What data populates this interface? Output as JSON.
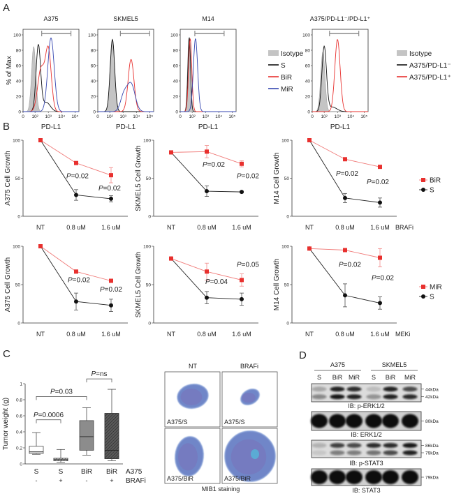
{
  "panel_labels": [
    "A",
    "B",
    "C",
    "D"
  ],
  "colors": {
    "S": "#111111",
    "BiR": "#e8302e",
    "MiR": "#3546b0",
    "isotype": "#c4c4c4",
    "gate": "#8a8a8a"
  },
  "panel_a": {
    "legend_1": [
      {
        "label": "Isotype",
        "color": "#c4c4c4",
        "style": "filled"
      },
      {
        "label": "S",
        "color": "#111111",
        "style": "line"
      },
      {
        "label": "BiR",
        "color": "#e8302e",
        "style": "line"
      },
      {
        "label": "MiR",
        "color": "#3546b0",
        "style": "line"
      }
    ],
    "legend_2": [
      {
        "label": "Isotype",
        "color": "#c4c4c4",
        "style": "filled"
      },
      {
        "label": "A375/PD-L1⁻",
        "color": "#111111",
        "style": "line"
      },
      {
        "label": "A375/PD-L1⁺",
        "color": "#e8302e",
        "style": "line"
      }
    ]
  },
  "chart_data": [
    {
      "type": "histogram",
      "title": "A375",
      "xlabel": "PD-L1",
      "ylabel": "% of Max",
      "yticks": [
        "0",
        "20",
        "40",
        "60",
        "80",
        "100"
      ],
      "xticks": [
        "0",
        "10²",
        "10³",
        "10⁴",
        "10⁵"
      ],
      "gate_log10": [
        2.5,
        4.7
      ],
      "series": [
        {
          "name": "Isotype",
          "color": "#c4c4c4",
          "filled": true,
          "components": [
            [
              1.9,
              85,
              0.16
            ]
          ]
        },
        {
          "name": "S",
          "color": "#111111",
          "components": [
            [
              2.25,
              86,
              0.17
            ],
            [
              2.85,
              12,
              0.3
            ]
          ]
        },
        {
          "name": "BiR",
          "color": "#e8302e",
          "components": [
            [
              3.0,
              80,
              0.22
            ],
            [
              2.45,
              55,
              0.25
            ]
          ]
        },
        {
          "name": "MiR",
          "color": "#3546b0",
          "components": [
            [
              3.2,
              96,
              0.24
            ]
          ]
        }
      ]
    },
    {
      "type": "histogram",
      "title": "SKMEL5",
      "xlabel": "PD-L1",
      "ylabel": "",
      "yticks": [
        "0",
        "20",
        "40",
        "60",
        "80",
        "100"
      ],
      "xticks": [
        "0",
        "10²",
        "10³",
        "10⁴",
        "10⁵"
      ],
      "gate_log10": [
        2.8,
        5.0
      ],
      "series": [
        {
          "name": "Isotype",
          "color": "#c4c4c4",
          "filled": true,
          "components": [
            [
              2.2,
              95,
              0.17
            ]
          ]
        },
        {
          "name": "S",
          "color": "#111111",
          "components": [
            [
              2.2,
              94,
              0.17
            ]
          ]
        },
        {
          "name": "BiR",
          "color": "#e8302e",
          "components": [
            [
              3.6,
              68,
              0.22
            ]
          ]
        },
        {
          "name": "MiR",
          "color": "#3546b0",
          "components": [
            [
              3.6,
              36,
              0.3
            ],
            [
              3.05,
              20,
              0.25
            ]
          ]
        }
      ]
    },
    {
      "type": "histogram",
      "title": "M14",
      "xlabel": "PD-L1",
      "ylabel": "",
      "yticks": [
        "0",
        "20",
        "40",
        "60",
        "80",
        "100"
      ],
      "xticks": [
        "0",
        "10²",
        "10³",
        "10⁴",
        "10⁵"
      ],
      "gate_log10": [
        2.2,
        4.4
      ],
      "series": [
        {
          "name": "Isotype",
          "color": "#c4c4c4",
          "filled": true,
          "components": [
            [
              1.75,
              95,
              0.1
            ]
          ]
        },
        {
          "name": "S",
          "color": "#111111",
          "components": [
            [
              1.78,
              97,
              0.1
            ]
          ]
        },
        {
          "name": "BiR",
          "color": "#e8302e",
          "components": [
            [
              1.85,
              95,
              0.12
            ]
          ]
        },
        {
          "name": "MiR",
          "color": "#3546b0",
          "components": [
            [
              2.25,
              95,
              0.16
            ]
          ]
        }
      ]
    },
    {
      "type": "histogram",
      "title": "A375/PD-L1⁻/PD-L1⁺",
      "xlabel": "PD-L1",
      "ylabel": "",
      "yticks": [
        "0",
        "20",
        "40",
        "60",
        "80",
        "100"
      ],
      "xticks": [
        "0",
        "10²",
        "10³",
        "10⁴",
        "10⁵"
      ],
      "gate_log10": [
        2.4,
        4.6
      ],
      "series": [
        {
          "name": "Isotype",
          "color": "#c4c4c4",
          "filled": true,
          "components": [
            [
              1.9,
              78,
              0.16
            ]
          ]
        },
        {
          "name": "A375/PD-L1⁻",
          "color": "#111111",
          "components": [
            [
              2.0,
              84,
              0.17
            ],
            [
              2.6,
              6,
              0.35
            ]
          ]
        },
        {
          "name": "A375/PD-L1⁺",
          "color": "#e8302e",
          "components": [
            [
              3.0,
              94,
              0.2
            ]
          ]
        }
      ]
    },
    {
      "type": "line",
      "ylabel": "A375 Cell Growth",
      "categories": [
        "NT",
        "0.8 uM",
        "1.6 uM"
      ],
      "ylim": [
        0,
        100
      ],
      "yticks": [
        "0",
        "50",
        "100"
      ],
      "x_suffix": "",
      "series": [
        {
          "name": "BiR",
          "color": "#e8302e",
          "marker": "square",
          "values": [
            100,
            70,
            54
          ],
          "errors": [
            0,
            1,
            10
          ]
        },
        {
          "name": "S",
          "color": "#111111",
          "marker": "circle",
          "values": [
            100,
            28,
            23
          ],
          "errors": [
            0,
            7,
            4
          ]
        }
      ],
      "annotations": [
        {
          "symbol": "P",
          "text": "=0.02"
        },
        {
          "symbol": "P",
          "text": "=0.02"
        }
      ]
    },
    {
      "type": "line",
      "ylabel": "SKMEL5 Cell Growth",
      "categories": [
        "NT",
        "0.8 uM",
        "1.6 uM"
      ],
      "ylim": [
        0,
        100
      ],
      "yticks": [
        "0",
        "50",
        "100"
      ],
      "x_suffix": "",
      "series": [
        {
          "name": "BiR",
          "color": "#e8302e",
          "marker": "square",
          "values": [
            84,
            85,
            69
          ],
          "errors": [
            0,
            8,
            4
          ]
        },
        {
          "name": "S",
          "color": "#111111",
          "marker": "circle",
          "values": [
            84,
            33,
            32
          ],
          "errors": [
            1,
            7,
            1
          ]
        }
      ],
      "annotations": [
        {
          "symbol": "P",
          "text": "=0.02"
        },
        {
          "symbol": "P",
          "text": "=0.02"
        }
      ]
    },
    {
      "type": "line",
      "ylabel": "M14 Cell Growth",
      "categories": [
        "NT",
        "0.8 uM",
        "1.6 uM"
      ],
      "ylim": [
        0,
        100
      ],
      "yticks": [
        "0",
        "50",
        "100"
      ],
      "x_suffix": "BRAFi",
      "series": [
        {
          "name": "BiR",
          "color": "#e8302e",
          "marker": "square",
          "values": [
            100,
            75,
            65
          ],
          "errors": [
            0,
            1,
            1
          ]
        },
        {
          "name": "S",
          "color": "#111111",
          "marker": "circle",
          "values": [
            100,
            24,
            18
          ],
          "errors": [
            0,
            6,
            6
          ]
        }
      ],
      "annotations": [
        {
          "symbol": "P",
          "text": "=0.02"
        },
        {
          "symbol": "P",
          "text": "=0.02"
        }
      ]
    },
    {
      "type": "line",
      "ylabel": "A375 Cell Growth",
      "categories": [
        "NT",
        "0.8 uM",
        "1.6 uM"
      ],
      "ylim": [
        0,
        100
      ],
      "yticks": [
        "0",
        "50",
        "100"
      ],
      "x_suffix": "",
      "series": [
        {
          "name": "MiR",
          "color": "#e8302e",
          "marker": "square",
          "values": [
            100,
            67,
            55
          ],
          "errors": [
            0,
            1,
            2
          ]
        },
        {
          "name": "S",
          "color": "#111111",
          "marker": "circle",
          "values": [
            100,
            28,
            23
          ],
          "errors": [
            0,
            11,
            8
          ]
        }
      ],
      "annotations": [
        {
          "symbol": "P",
          "text": "=0.02"
        },
        {
          "symbol": "P",
          "text": "=0.02"
        }
      ]
    },
    {
      "type": "line",
      "ylabel": "SKMEL5 Cell Growth",
      "categories": [
        "NT",
        "0.8 uM",
        "1.6 uM"
      ],
      "ylim": [
        0,
        100
      ],
      "yticks": [
        "0",
        "50",
        "100"
      ],
      "x_suffix": "",
      "series": [
        {
          "name": "MiR",
          "color": "#e8302e",
          "marker": "square",
          "values": [
            84,
            67,
            56
          ],
          "errors": [
            1,
            11,
            8
          ]
        },
        {
          "name": "S",
          "color": "#111111",
          "marker": "circle",
          "values": [
            84,
            33,
            31
          ],
          "errors": [
            1,
            8,
            8
          ]
        }
      ],
      "annotations": [
        {
          "symbol": "P",
          "text": "=0.04"
        },
        {
          "symbol": "P",
          "text": "=0.05"
        }
      ]
    },
    {
      "type": "line",
      "ylabel": "M14 Cell Growth",
      "categories": [
        "NT",
        "0.8 uM",
        "1.6 uM"
      ],
      "ylim": [
        0,
        100
      ],
      "yticks": [
        "0",
        "50",
        "100"
      ],
      "x_suffix": "MEKi",
      "series": [
        {
          "name": "MiR",
          "color": "#e8302e",
          "marker": "square",
          "values": [
            97,
            95,
            85
          ],
          "errors": [
            1,
            2,
            12
          ]
        },
        {
          "name": "S",
          "color": "#111111",
          "marker": "circle",
          "values": [
            97,
            36,
            26
          ],
          "errors": [
            1,
            15,
            8
          ]
        }
      ],
      "annotations": [
        {
          "symbol": "P",
          "text": "=0.02"
        },
        {
          "symbol": "P",
          "text": "=0.02"
        }
      ]
    },
    {
      "type": "box",
      "ylabel": "Tumor weight (g)",
      "ylim": [
        0,
        1
      ],
      "yticks": [
        "0",
        "0.2",
        "0.4",
        "0.6",
        "0.8",
        "1"
      ],
      "row_labels": [
        "A375",
        "BRAFi"
      ],
      "categories": [
        {
          "cell": "S",
          "treatment": "-"
        },
        {
          "cell": "S",
          "treatment": "+"
        },
        {
          "cell": "BiR",
          "treatment": "-"
        },
        {
          "cell": "BiR",
          "treatment": "+"
        }
      ],
      "boxes": [
        {
          "min": 0.12,
          "q1": 0.13,
          "median": 0.15,
          "q3": 0.22,
          "max": 0.39,
          "fill": "#ffffff",
          "hatched": false
        },
        {
          "min": 0.02,
          "q1": 0.04,
          "median": 0.055,
          "q3": 0.07,
          "max": 0.18,
          "fill": "#ffffff",
          "hatched": true
        },
        {
          "min": 0.11,
          "q1": 0.17,
          "median": 0.34,
          "q3": 0.54,
          "max": 0.7,
          "fill": "#8c8c8c",
          "hatched": false
        },
        {
          "min": 0.04,
          "q1": 0.065,
          "median": 0.17,
          "q3": 0.63,
          "max": 0.93,
          "fill": "#5a5a5a",
          "hatched": true
        }
      ],
      "brackets": [
        {
          "from": 0,
          "to": 1,
          "at": 0.55,
          "symbol": "P",
          "text": "=0.0006"
        },
        {
          "from": 0,
          "to": 2,
          "at": 0.84,
          "symbol": "P",
          "text": "=0.03"
        },
        {
          "from": 2,
          "to": 3,
          "at": 1.06,
          "symbol": "P",
          "text": "=ns"
        }
      ]
    }
  ],
  "histology": {
    "column_titles": [
      "NT",
      "BRAFi"
    ],
    "tiles": [
      "A375/S",
      "A375/S",
      "A375/BiR",
      "A375/BiR"
    ],
    "caption": "MIB1 staining"
  },
  "western": {
    "groups": [
      {
        "name": "A375",
        "lanes": [
          "S",
          "BiR",
          "MiR"
        ]
      },
      {
        "name": "SKMEL5",
        "lanes": [
          "S",
          "BiR",
          "MiR"
        ]
      }
    ],
    "blots": [
      {
        "label": "IB: p-ERK1/2",
        "markers": [
          "44kDa",
          "42kDa"
        ],
        "bands": [
          [
            0.25,
            0.9,
            0.85,
            0.15,
            0.9,
            0.7
          ],
          [
            0.4,
            0.95,
            0.9,
            0.35,
            0.9,
            0.85
          ]
        ]
      },
      {
        "label": "IB: ERK1/2",
        "markers": [
          "80kDa"
        ],
        "bands": [
          [
            1,
            1,
            1,
            1,
            1,
            1
          ]
        ]
      },
      {
        "label": "IB: p-STAT3",
        "markers": [
          "86kDa",
          "79kDa"
        ],
        "bands": [
          [
            0.2,
            0.75,
            0.7,
            0.85,
            0.85,
            0.95
          ],
          [
            0.1,
            0.45,
            0.45,
            0.5,
            0.7,
            0.9
          ]
        ]
      },
      {
        "label": "IB: STAT3",
        "markers": [
          "79kDa"
        ],
        "bands": [
          [
            1,
            1,
            1,
            1,
            1,
            1
          ]
        ]
      }
    ]
  }
}
